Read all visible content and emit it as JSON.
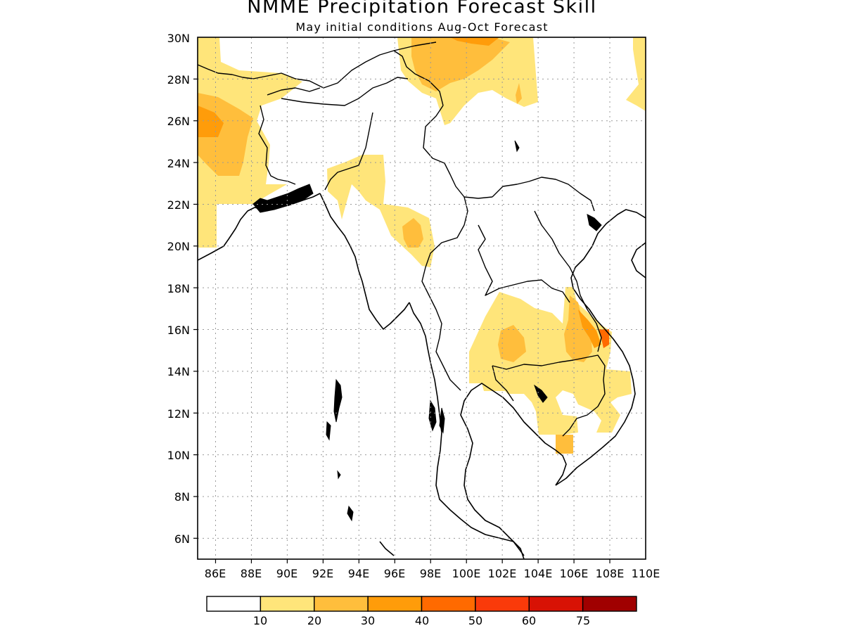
{
  "title": "NMME Precipitation Forecast Skill",
  "subtitle": "May initial conditions  Aug-Oct Forecast",
  "map": {
    "lon_range": [
      85,
      110
    ],
    "lat_range": [
      5,
      30
    ],
    "lon_labels": [
      "86E",
      "88E",
      "90E",
      "92E",
      "94E",
      "96E",
      "98E",
      "100E",
      "102E",
      "104E",
      "106E",
      "108E",
      "110E"
    ],
    "lat_labels": [
      "30N",
      "28N",
      "26N",
      "24N",
      "22N",
      "20N",
      "18N",
      "16N",
      "14N",
      "12N",
      "10N",
      "8N",
      "6N"
    ],
    "grid": "dotted"
  },
  "colorbar": {
    "colors": [
      "#ffffff",
      "#ffe57a",
      "#ffbe3c",
      "#ff9c0a",
      "#ff6a00",
      "#fa3a0a",
      "#d81205",
      "#a00000"
    ],
    "labels": [
      "10",
      "20",
      "30",
      "40",
      "50",
      "60",
      "75"
    ]
  }
}
